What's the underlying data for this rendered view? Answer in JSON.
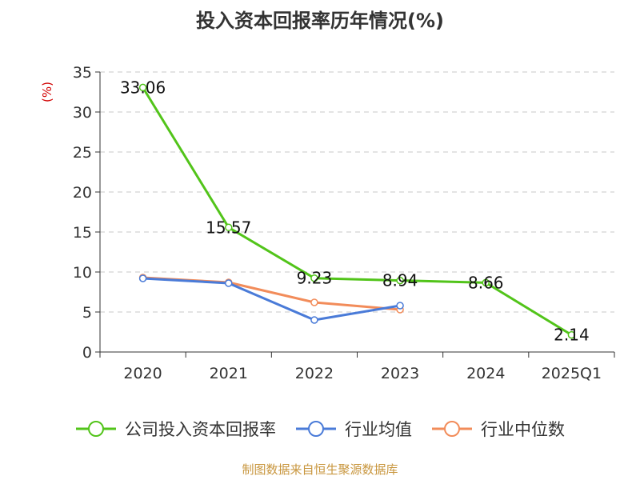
{
  "title": "投入资本回报率历年情况(%)",
  "source": "制图数据来自恒生聚源数据库",
  "chart_data": {
    "type": "line",
    "title": "投入资本回报率历年情况(%)",
    "xlabel": "",
    "ylabel": "(%)",
    "ylim": [
      0,
      35
    ],
    "yticks": [
      "0",
      "5",
      "10",
      "15",
      "20",
      "25",
      "30",
      "35"
    ],
    "grid": true,
    "legend_position": "bottom",
    "categories": [
      "2020",
      "2021",
      "2022",
      "2023",
      "2024",
      "2025Q1"
    ],
    "series": [
      {
        "name": "公司投入资本回报率",
        "color": "#52c41a",
        "values": [
          33.06,
          15.57,
          9.23,
          8.94,
          8.66,
          2.14
        ],
        "labels": [
          "33.06",
          "15.57",
          "9.23",
          "8.94",
          "8.66",
          "2.14"
        ]
      },
      {
        "name": "行业均值",
        "color": "#4a7bd8",
        "values": [
          9.2,
          8.6,
          4.0,
          5.8,
          null,
          null
        ]
      },
      {
        "name": "行业中位数",
        "color": "#f28c5a",
        "values": [
          9.3,
          8.7,
          6.2,
          5.3,
          null,
          null
        ]
      }
    ]
  }
}
